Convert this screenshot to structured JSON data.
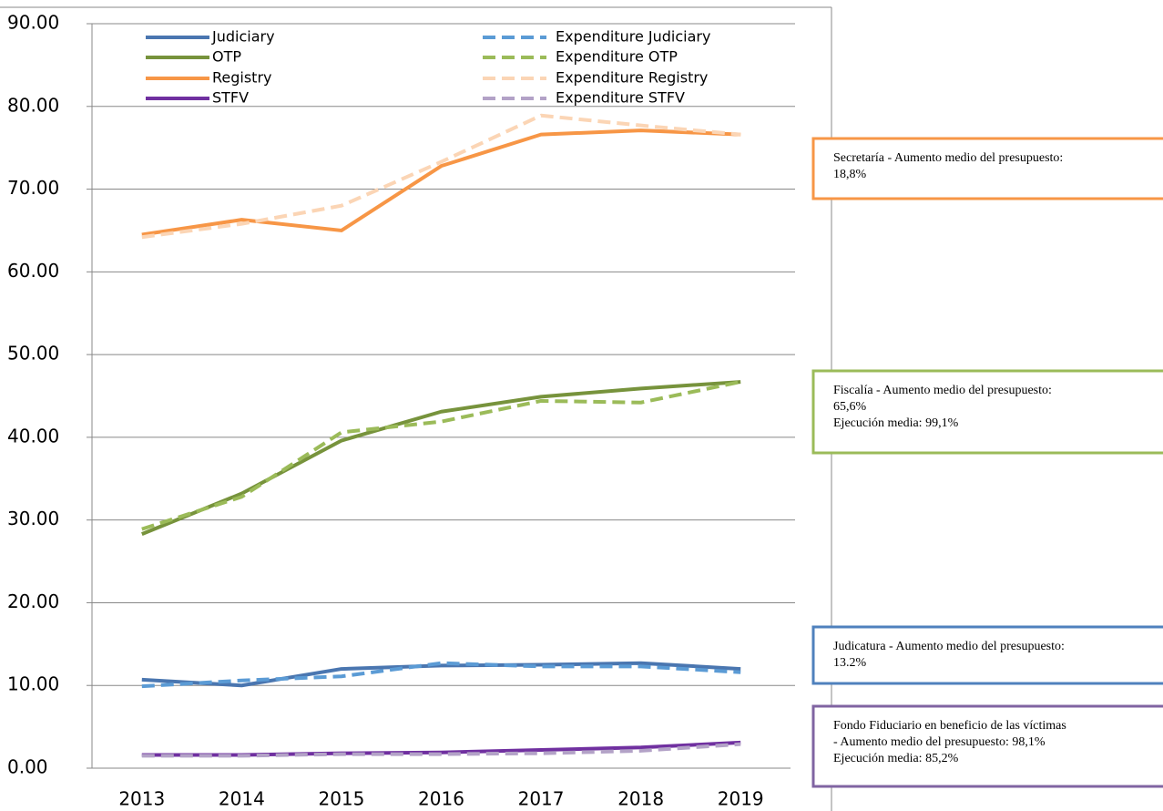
{
  "chart_data": {
    "type": "line",
    "categories": [
      "2013",
      "2014",
      "2015",
      "2016",
      "2017",
      "2018",
      "2019"
    ],
    "series": [
      {
        "name": "Judiciary",
        "color": "#4a76b0",
        "dash": false,
        "values": [
          10.7,
          10.0,
          12.0,
          12.4,
          12.5,
          12.7,
          12.0
        ]
      },
      {
        "name": "Expenditure Judiciary",
        "color": "#5b9bd5",
        "dash": true,
        "values": [
          9.9,
          10.6,
          11.1,
          12.7,
          12.3,
          12.3,
          11.6
        ]
      },
      {
        "name": "OTP",
        "color": "#77933c",
        "dash": false,
        "values": [
          28.3,
          33.2,
          39.6,
          43.1,
          44.9,
          45.9,
          46.7
        ]
      },
      {
        "name": "Expenditure OTP",
        "color": "#9bbb59",
        "dash": true,
        "values": [
          28.9,
          32.8,
          40.6,
          41.9,
          44.4,
          44.2,
          46.7
        ]
      },
      {
        "name": "Registry",
        "color": "#f79646",
        "dash": false,
        "values": [
          64.5,
          66.3,
          65.0,
          72.8,
          76.6,
          77.1,
          76.6
        ]
      },
      {
        "name": "Expenditure Registry",
        "color": "#fbd5b5",
        "dash": true,
        "values": [
          64.2,
          65.8,
          68.0,
          73.3,
          78.9,
          77.7,
          76.6
        ]
      },
      {
        "name": "STFV",
        "color": "#7030a0",
        "dash": false,
        "values": [
          1.6,
          1.6,
          1.8,
          1.9,
          2.2,
          2.5,
          3.1
        ]
      },
      {
        "name": "Expenditure STFV",
        "color": "#b3a2c7",
        "dash": true,
        "values": [
          1.5,
          1.5,
          1.7,
          1.7,
          1.8,
          2.1,
          2.9
        ]
      }
    ],
    "ylim": [
      0,
      90
    ],
    "yticks": [
      {
        "value": 0,
        "label": "0.00"
      },
      {
        "value": 10,
        "label": "10.00"
      },
      {
        "value": 20,
        "label": "20.00"
      },
      {
        "value": 30,
        "label": "30.00"
      },
      {
        "value": 40,
        "label": "40.00"
      },
      {
        "value": 50,
        "label": "50.00"
      },
      {
        "value": 60,
        "label": "60.00"
      },
      {
        "value": 70,
        "label": "70.00"
      },
      {
        "value": 80,
        "label": "80.00"
      },
      {
        "value": 90,
        "label": "90.00"
      }
    ],
    "grid": true,
    "annotations": [
      {
        "color": "#f79646",
        "lines": [
          "Secretaría - Aumento medio del presupuesto:",
          "18,8%"
        ]
      },
      {
        "color": "#9bbb59",
        "lines": [
          "Fiscalía - Aumento medio del presupuesto:",
          "65,6%",
          " Ejecución media: 99,1%"
        ]
      },
      {
        "color": "#4f81bd",
        "lines": [
          "Judicatura - Aumento medio del presupuesto:",
          "13.2%"
        ]
      },
      {
        "color": "#8064a2",
        "lines": [
          "Fondo Fiduciario en beneficio de las víctimas",
          "- Aumento medio del presupuesto: 98,1%",
          " Ejecución media: 85,2%"
        ]
      }
    ]
  }
}
